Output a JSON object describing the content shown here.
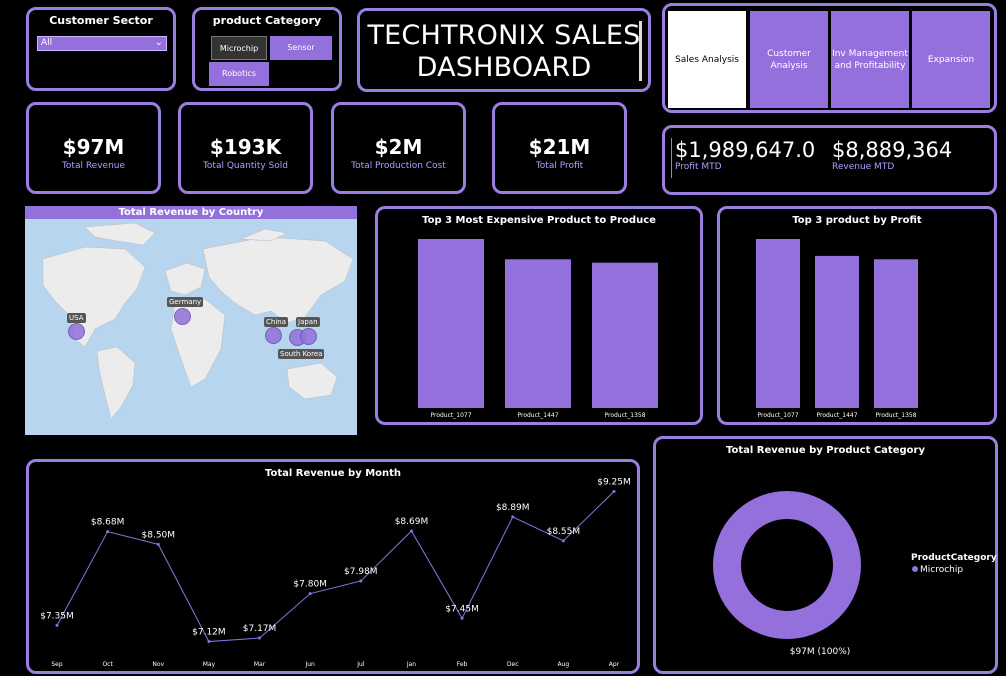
{
  "slicers": {
    "customer_sector": {
      "title": "Customer Sector",
      "selected": "All"
    },
    "product_category": {
      "title": "product Category",
      "options": [
        "Microchip",
        "Sensor",
        "Robotics"
      ]
    }
  },
  "header": {
    "title_line1": "TECHTRONIX SALES",
    "title_line2": "DASHBOARD"
  },
  "nav": {
    "buttons": [
      {
        "label": "Sales Analysis",
        "active": true
      },
      {
        "label": "Customer Analysis",
        "active": false
      },
      {
        "label": "Inv Management and Profitability",
        "active": false
      },
      {
        "label": "Expansion",
        "active": false
      }
    ]
  },
  "kpis": [
    {
      "value": "$97M",
      "label": "Total Revenue"
    },
    {
      "value": "$193K",
      "label": "Total Quantity Sold"
    },
    {
      "value": "$2M",
      "label": "Total Production Cost"
    },
    {
      "value": "$21M",
      "label": "Total Profit"
    }
  ],
  "mtd": [
    {
      "value": "$1,989,647.0",
      "label": "Profit MTD"
    },
    {
      "value": "$8,889,364",
      "label": "Revenue MTD"
    }
  ],
  "map": {
    "title": "Total Revenue by Country",
    "countries": [
      "USA",
      "Germany",
      "China",
      "Japan",
      "South Korea"
    ]
  },
  "chart_data": [
    {
      "type": "bar",
      "title": "Top 3 Most Expensive Product to Produce",
      "categories": [
        "Product_1077",
        "Product_1447",
        "Product_1358"
      ],
      "values": [
        100,
        88,
        86
      ]
    },
    {
      "type": "bar",
      "title": "Top 3 product by Profit",
      "categories": [
        "Product_1077",
        "Product_1447",
        "Product_1358"
      ],
      "values": [
        100,
        90,
        88
      ]
    },
    {
      "type": "line",
      "title": "Total Revenue by Month",
      "categories": [
        "Sep",
        "Oct",
        "Nov",
        "May",
        "Mar",
        "Jun",
        "Jul",
        "Jan",
        "Feb",
        "Dec",
        "Aug",
        "Apr"
      ],
      "values": [
        7.35,
        8.68,
        8.5,
        7.12,
        7.17,
        7.8,
        7.98,
        8.69,
        7.45,
        8.89,
        8.55,
        9.25
      ],
      "data_labels": [
        "$7.35M",
        "$8.68M",
        "$8.50M",
        "$7.12M",
        "$7.17M",
        "$7.80M",
        "$7.98M",
        "$8.69M",
        "$7.45M",
        "$8.89M",
        "$8.55M",
        "$9.25M"
      ],
      "color": "#8a74e0"
    },
    {
      "type": "pie",
      "title": "Total Revenue by Product Category",
      "legend_title": "ProductCategory",
      "categories": [
        "Microchip"
      ],
      "values": [
        100
      ],
      "data_label": "$97M (100%)",
      "color": "#9370db"
    }
  ],
  "colors": {
    "accent": "#9370db",
    "border": "#9b7fe0",
    "label": "#b59bff",
    "background": "#000000"
  }
}
